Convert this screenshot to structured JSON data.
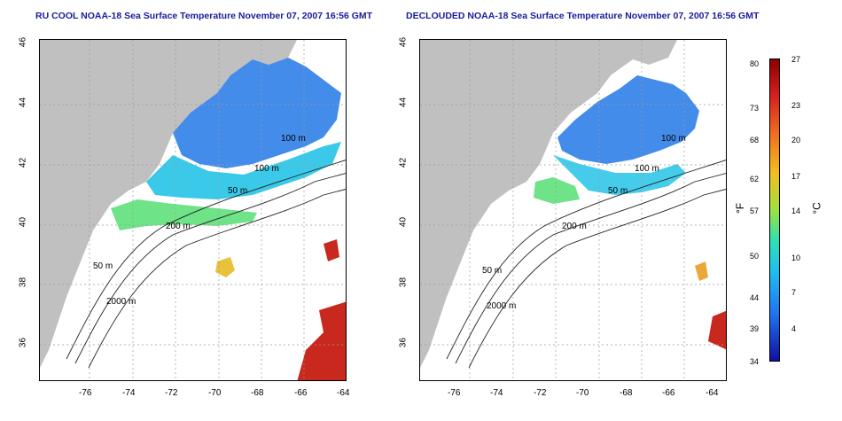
{
  "titles": {
    "left": "RU COOL NOAA-18 Sea Surface Temperature November 07, 2007 16:56 GMT",
    "right": "DECLOUDED NOAA-18 Sea Surface Temperature November 07, 2007 16:56 GMT"
  },
  "map": {
    "x_ticks": [
      "-76",
      "-74",
      "-72",
      "-70",
      "-68",
      "-66",
      "-64"
    ],
    "y_ticks": [
      "36",
      "38",
      "40",
      "42",
      "44",
      "46"
    ],
    "contours": [
      "100 m",
      "100 m",
      "50 m",
      "200 m",
      "50 m",
      "2000 m"
    ],
    "colors": {
      "land": "#c0c0c0",
      "cold": "#2f7fe8",
      "cool": "#26c3e8",
      "mild": "#5fe07a",
      "warm": "#e8c23a",
      "hot": "#c8281e"
    }
  },
  "colorbar": {
    "fahrenheit": [
      "80",
      "73",
      "68",
      "62",
      "57",
      "50",
      "44",
      "39",
      "34"
    ],
    "celsius": [
      "27",
      "23",
      "20",
      "17",
      "14",
      "10",
      "7",
      "4"
    ],
    "unit_f": "°F",
    "unit_c": "°C"
  }
}
